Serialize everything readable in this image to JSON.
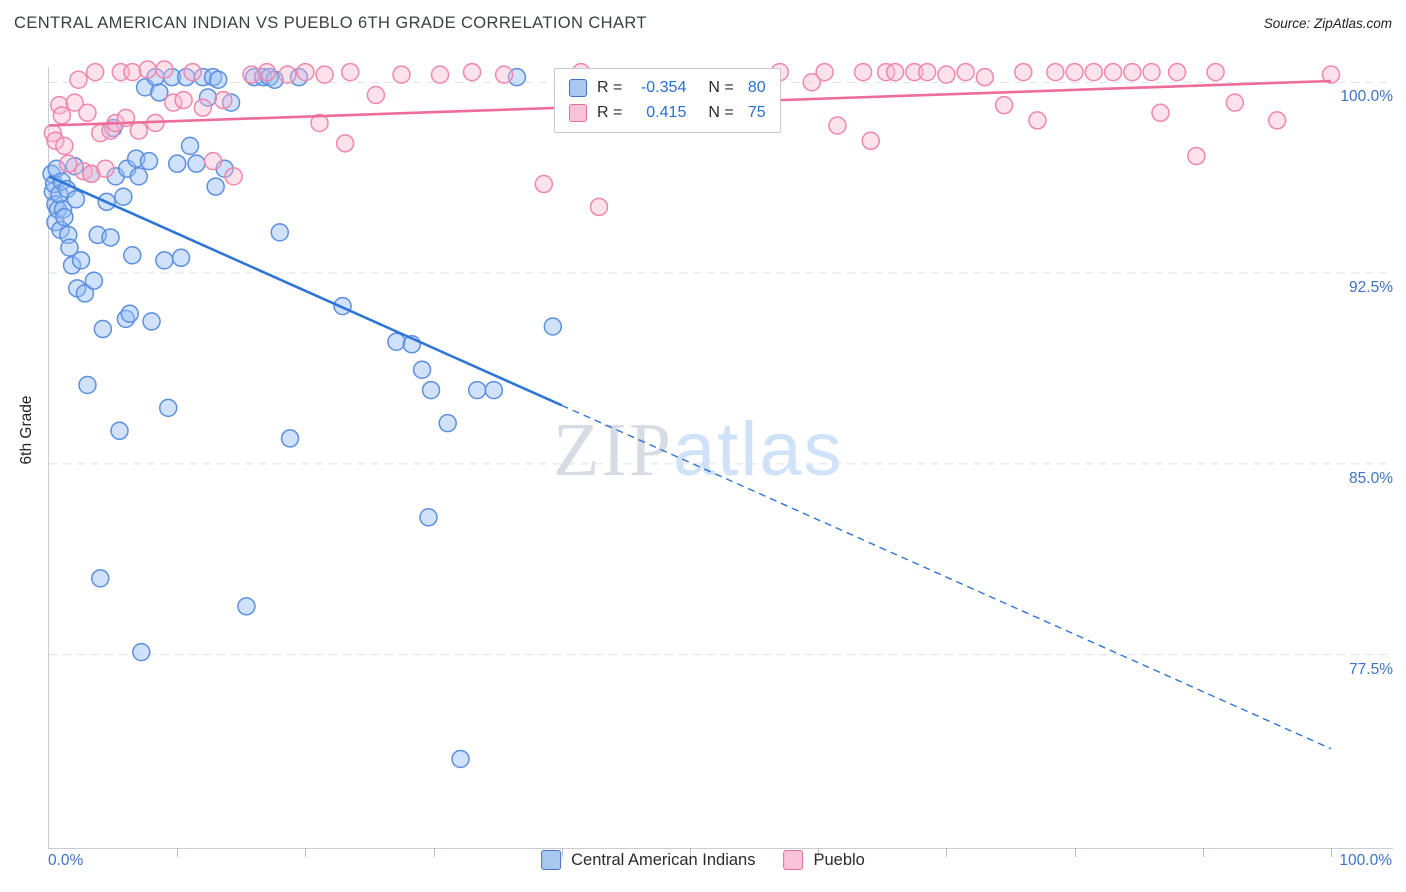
{
  "title": "CENTRAL AMERICAN INDIAN VS PUEBLO 6TH GRADE CORRELATION CHART",
  "source": "Source: ZipAtlas.com",
  "watermark": {
    "part1": "ZIP",
    "part2": "atlas"
  },
  "axes": {
    "y_label": "6th Grade",
    "y_tick_labels": [
      "100.0%",
      "92.5%",
      "85.0%",
      "77.5%"
    ],
    "x_min_label": "0.0%",
    "x_max_label": "100.0%"
  },
  "legend_box": {
    "rows": [
      {
        "r_label": "R =",
        "r_value": "-0.354",
        "n_label": "N =",
        "n_value": "80"
      },
      {
        "r_label": "R =",
        "r_value": "0.415",
        "n_label": "N =",
        "n_value": "75"
      }
    ]
  },
  "bottom_legend": {
    "items": [
      {
        "label": "Central American Indians"
      },
      {
        "label": "Pueblo"
      }
    ]
  },
  "colors": {
    "axis_label_blue": "#3d73c9",
    "gridline": "#dadfe7",
    "blue_stroke": "#5c8fe0",
    "pink_stroke": "#ef87ad"
  },
  "chart_data": {
    "type": "scatter",
    "title": "CENTRAL AMERICAN INDIAN VS PUEBLO 6TH GRADE CORRELATION CHART",
    "xlabel": "",
    "ylabel": "6th Grade",
    "xlim": [
      0,
      100
    ],
    "ylim": [
      69.9,
      100.6
    ],
    "y_gridlines": [
      100,
      92.5,
      85,
      77.5
    ],
    "x_ticks": [
      10,
      20,
      30,
      40,
      50,
      60,
      70,
      80,
      90,
      100
    ],
    "grid": "dashed-horizontal",
    "legend_position": "top-center and bottom-center",
    "series": [
      {
        "name": "Central American Indians",
        "R": -0.354,
        "N": 80,
        "stroke": "#5c8fe0",
        "fill": "rgba(150,190,246,0.45)",
        "swatch_fill": "#a8c8f0",
        "swatch_stroke": "#4472c4",
        "trend": {
          "x1": 0,
          "y1": 96.3,
          "x2": 100,
          "y2": 73.8,
          "solid_until_x": 40,
          "color": "#2e75d6"
        },
        "points": [
          [
            0.2,
            96.4
          ],
          [
            0.3,
            95.7
          ],
          [
            0.4,
            96.0
          ],
          [
            0.5,
            95.2
          ],
          [
            0.5,
            94.5
          ],
          [
            0.6,
            96.6
          ],
          [
            0.7,
            95.0
          ],
          [
            0.8,
            95.6
          ],
          [
            0.9,
            94.2
          ],
          [
            1.0,
            96.1
          ],
          [
            1.1,
            95.0
          ],
          [
            1.2,
            94.7
          ],
          [
            1.4,
            95.8
          ],
          [
            1.5,
            94.0
          ],
          [
            1.6,
            93.5
          ],
          [
            1.8,
            92.8
          ],
          [
            2.0,
            96.7
          ],
          [
            2.1,
            95.4
          ],
          [
            2.2,
            91.9
          ],
          [
            2.5,
            93.0
          ],
          [
            2.8,
            91.7
          ],
          [
            3.0,
            88.1
          ],
          [
            3.3,
            96.4
          ],
          [
            3.5,
            92.2
          ],
          [
            3.8,
            94.0
          ],
          [
            4.0,
            80.5
          ],
          [
            4.2,
            90.3
          ],
          [
            4.5,
            95.3
          ],
          [
            4.8,
            93.9
          ],
          [
            5.0,
            98.2
          ],
          [
            5.2,
            96.3
          ],
          [
            5.5,
            86.3
          ],
          [
            5.8,
            95.5
          ],
          [
            6.0,
            90.7
          ],
          [
            6.1,
            96.6
          ],
          [
            6.3,
            90.9
          ],
          [
            6.5,
            93.2
          ],
          [
            6.8,
            97.0
          ],
          [
            7.0,
            96.3
          ],
          [
            7.2,
            77.6
          ],
          [
            7.5,
            99.8
          ],
          [
            7.8,
            96.9
          ],
          [
            8.0,
            90.6
          ],
          [
            8.3,
            100.2
          ],
          [
            8.6,
            99.6
          ],
          [
            9.0,
            93.0
          ],
          [
            9.3,
            87.2
          ],
          [
            9.6,
            100.2
          ],
          [
            10.0,
            96.8
          ],
          [
            10.3,
            93.1
          ],
          [
            10.7,
            100.2
          ],
          [
            11.0,
            97.5
          ],
          [
            11.5,
            96.8
          ],
          [
            12.0,
            100.2
          ],
          [
            12.4,
            99.4
          ],
          [
            12.8,
            100.2
          ],
          [
            13.0,
            95.9
          ],
          [
            13.2,
            100.1
          ],
          [
            13.7,
            96.6
          ],
          [
            14.2,
            99.2
          ],
          [
            15.4,
            79.4
          ],
          [
            16.0,
            100.2
          ],
          [
            16.7,
            100.2
          ],
          [
            17.2,
            100.2
          ],
          [
            17.6,
            100.1
          ],
          [
            18.0,
            94.1
          ],
          [
            18.8,
            86.0
          ],
          [
            19.5,
            100.2
          ],
          [
            22.9,
            91.2
          ],
          [
            27.1,
            89.8
          ],
          [
            28.3,
            89.7
          ],
          [
            29.1,
            88.7
          ],
          [
            29.6,
            82.9
          ],
          [
            29.8,
            87.9
          ],
          [
            31.1,
            86.6
          ],
          [
            32.1,
            73.4
          ],
          [
            33.4,
            87.9
          ],
          [
            34.7,
            87.9
          ],
          [
            36.5,
            100.2
          ],
          [
            39.3,
            90.4
          ]
        ]
      },
      {
        "name": "Pueblo",
        "R": 0.415,
        "N": 75,
        "stroke": "#ef87ad",
        "fill": "rgba(249,183,208,0.4)",
        "swatch_fill": "#f9c2d6",
        "swatch_stroke": "#e36d9c",
        "trend": {
          "x1": 0,
          "y1": 98.3,
          "x2": 100,
          "y2": 100.05,
          "solid_until_x": 100,
          "color": "#ed6d99"
        },
        "points": [
          [
            0.3,
            98.0
          ],
          [
            0.5,
            97.7
          ],
          [
            0.8,
            99.1
          ],
          [
            1.0,
            98.7
          ],
          [
            1.2,
            97.5
          ],
          [
            1.5,
            96.8
          ],
          [
            2.0,
            99.2
          ],
          [
            2.3,
            100.1
          ],
          [
            2.7,
            96.5
          ],
          [
            3.0,
            98.8
          ],
          [
            3.3,
            96.4
          ],
          [
            3.6,
            100.4
          ],
          [
            4.0,
            98.0
          ],
          [
            4.4,
            96.6
          ],
          [
            4.8,
            98.1
          ],
          [
            5.2,
            98.4
          ],
          [
            5.6,
            100.4
          ],
          [
            6.0,
            98.6
          ],
          [
            6.5,
            100.4
          ],
          [
            7.0,
            98.1
          ],
          [
            7.7,
            100.5
          ],
          [
            8.3,
            98.4
          ],
          [
            9.0,
            100.5
          ],
          [
            9.7,
            99.2
          ],
          [
            10.5,
            99.3
          ],
          [
            11.2,
            100.4
          ],
          [
            12.0,
            99.0
          ],
          [
            12.8,
            96.9
          ],
          [
            13.6,
            99.3
          ],
          [
            14.4,
            96.3
          ],
          [
            15.8,
            100.3
          ],
          [
            17.0,
            100.4
          ],
          [
            18.6,
            100.3
          ],
          [
            20.0,
            100.4
          ],
          [
            21.1,
            98.4
          ],
          [
            21.5,
            100.3
          ],
          [
            23.1,
            97.6
          ],
          [
            23.5,
            100.4
          ],
          [
            25.5,
            99.5
          ],
          [
            27.5,
            100.3
          ],
          [
            30.5,
            100.3
          ],
          [
            33.0,
            100.4
          ],
          [
            35.5,
            100.3
          ],
          [
            38.6,
            96.0
          ],
          [
            41.5,
            100.4
          ],
          [
            42.9,
            95.1
          ],
          [
            57.0,
            100.4
          ],
          [
            59.5,
            100.0
          ],
          [
            60.5,
            100.4
          ],
          [
            61.5,
            98.3
          ],
          [
            63.5,
            100.4
          ],
          [
            64.1,
            97.7
          ],
          [
            65.3,
            100.4
          ],
          [
            66.0,
            100.4
          ],
          [
            67.5,
            100.4
          ],
          [
            68.5,
            100.4
          ],
          [
            70.0,
            100.3
          ],
          [
            71.5,
            100.4
          ],
          [
            73.0,
            100.2
          ],
          [
            74.5,
            99.1
          ],
          [
            76.0,
            100.4
          ],
          [
            77.1,
            98.5
          ],
          [
            78.5,
            100.4
          ],
          [
            80.0,
            100.4
          ],
          [
            81.5,
            100.4
          ],
          [
            83.0,
            100.4
          ],
          [
            84.5,
            100.4
          ],
          [
            86.0,
            100.4
          ],
          [
            86.7,
            98.8
          ],
          [
            88.0,
            100.4
          ],
          [
            89.5,
            97.1
          ],
          [
            91.0,
            100.4
          ],
          [
            92.5,
            99.2
          ],
          [
            95.8,
            98.5
          ],
          [
            100.0,
            100.3
          ]
        ]
      }
    ]
  }
}
